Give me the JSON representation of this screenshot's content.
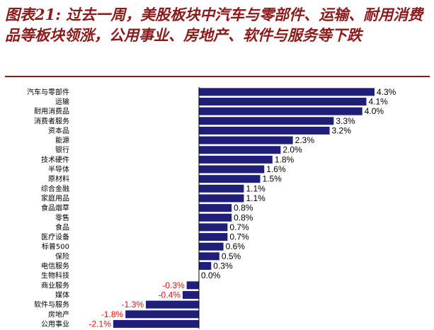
{
  "title": "图表21: 过去一周，美股板块中汽车与零部件、运输、耐用消费品等板块领涨，公用事业、房地产、软件与服务等下跌",
  "colors": {
    "bar": "#1f1f7a",
    "positive_label": "#000000",
    "negative_label": "#e01010",
    "title": "#8b1a1a"
  },
  "chart_data": {
    "type": "bar",
    "orientation": "horizontal",
    "categories": [
      "汽车与零部件",
      "运输",
      "耐用消费品",
      "消费者服务",
      "资本品",
      "能源",
      "银行",
      "技术硬件",
      "半导体",
      "原材料",
      "综合金融",
      "家庭用品",
      "食品烟草",
      "零售",
      "食品",
      "医疗设备",
      "标普500",
      "保险",
      "电信服务",
      "生物科技",
      "商业服务",
      "媒体",
      "软件与服务",
      "房地产",
      "公用事业"
    ],
    "values": [
      4.3,
      4.1,
      4.0,
      3.3,
      3.2,
      2.3,
      2.0,
      1.8,
      1.6,
      1.5,
      1.1,
      1.1,
      0.8,
      0.8,
      0.7,
      0.7,
      0.6,
      0.5,
      0.3,
      0.0,
      -0.3,
      -0.4,
      -1.3,
      -1.8,
      -2.1
    ],
    "labels": [
      "4.3%",
      "4.1%",
      "4.0%",
      "3.3%",
      "3.2%",
      "2.3%",
      "2.0%",
      "1.8%",
      "1.6%",
      "1.5%",
      "1.1%",
      "1.1%",
      "0.8%",
      "0.8%",
      "0.7%",
      "0.7%",
      "0.6%",
      "0.5%",
      "0.3%",
      "0.0%",
      "-0.3%",
      "-0.4%",
      "-1.3%",
      "-1.8%",
      "-2.1%"
    ],
    "xlim": [
      -2.7,
      4.3
    ],
    "grid": false,
    "legend": "none"
  }
}
